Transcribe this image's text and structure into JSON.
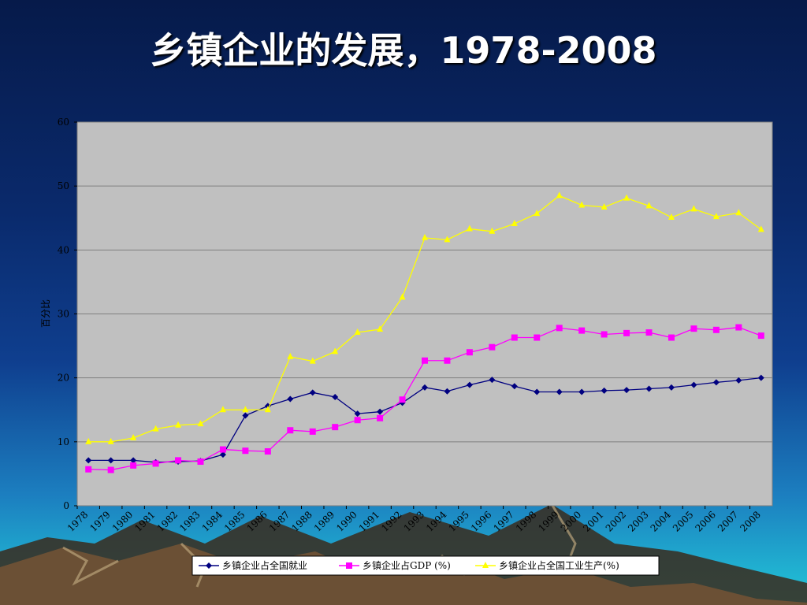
{
  "slide": {
    "title": "乡镇企业的发展，1978-2008"
  },
  "chart_data": {
    "type": "line",
    "ylabel": "百分比",
    "xlabel": "",
    "ylim": [
      0,
      60
    ],
    "yticks": [
      0,
      10,
      20,
      30,
      40,
      50,
      60
    ],
    "grid": true,
    "legend_position": "bottom",
    "categories": [
      "1978",
      "1979",
      "1980",
      "1981",
      "1982",
      "1983",
      "1984",
      "1985",
      "1986",
      "1987",
      "1988",
      "1989",
      "1990",
      "1991",
      "1992",
      "1993",
      "1994",
      "1995",
      "1996",
      "1997",
      "1998",
      "1999",
      "2000",
      "2001",
      "2002",
      "2003",
      "2004",
      "2005",
      "2006",
      "2007",
      "2008"
    ],
    "series": [
      {
        "name": "乡镇企业占全国就业",
        "color": "#000080",
        "marker": "diamond",
        "values": [
          7.1,
          7.1,
          7.1,
          6.8,
          6.9,
          7.0,
          8.0,
          14.1,
          15.6,
          16.7,
          17.7,
          17.0,
          14.4,
          14.7,
          16.1,
          18.5,
          17.9,
          18.9,
          19.7,
          18.7,
          17.8,
          17.8,
          17.8,
          18.0,
          18.1,
          18.3,
          18.5,
          18.9,
          19.3,
          19.6,
          20.0
        ]
      },
      {
        "name": "乡镇企业占GDP (%)",
        "color": "#ff00ff",
        "marker": "square",
        "values": [
          5.7,
          5.6,
          6.3,
          6.6,
          7.1,
          6.9,
          8.8,
          8.6,
          8.5,
          11.8,
          11.6,
          12.3,
          13.4,
          13.7,
          16.6,
          22.7,
          22.7,
          24.0,
          24.8,
          26.3,
          26.3,
          27.8,
          27.4,
          26.8,
          27.0,
          27.1,
          26.3,
          27.7,
          27.5,
          27.9,
          26.6
        ]
      },
      {
        "name": "乡镇企业占全国工业生产(%)",
        "color": "#ffff00",
        "marker": "triangle",
        "values": [
          10.0,
          10.0,
          10.6,
          12.0,
          12.6,
          12.8,
          15.0,
          15.0,
          15.0,
          23.3,
          22.6,
          24.1,
          27.1,
          27.6,
          32.6,
          41.9,
          41.6,
          43.3,
          42.9,
          44.1,
          45.7,
          48.5,
          47.0,
          46.7,
          48.1,
          46.9,
          45.1,
          46.4,
          45.2,
          45.8,
          43.2
        ]
      }
    ]
  }
}
